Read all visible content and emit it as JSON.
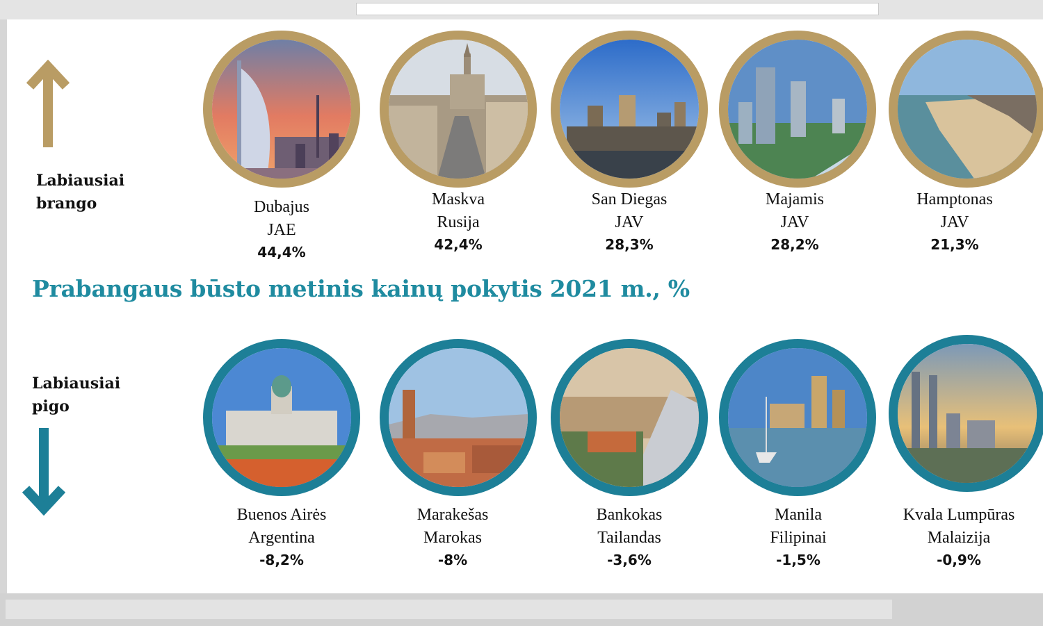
{
  "title": "Prabangaus būsto metinis kainų pokytis 2021 m., %",
  "top_label": [
    "Labiausiai",
    "brango"
  ],
  "bottom_label": [
    "Labiausiai",
    "pigo"
  ],
  "colors": {
    "gold": "#b99c64",
    "teal": "#1d7f97",
    "title": "#1f8ba0"
  },
  "top_cities": [
    {
      "city": "Dubajus",
      "country": "JAE",
      "change": "44,4%"
    },
    {
      "city": "Maskva",
      "country": "Rusija",
      "change": "42,4%"
    },
    {
      "city": "San Diegas",
      "country": "JAV",
      "change": "28,3%"
    },
    {
      "city": "Majamis",
      "country": "JAV",
      "change": "28,2%"
    },
    {
      "city": "Hamptonas",
      "country": "JAV",
      "change": "21,3%"
    }
  ],
  "bottom_cities": [
    {
      "city": "Buenos Airės",
      "country": "Argentina",
      "change": "-8,2%"
    },
    {
      "city": "Marakešas",
      "country": "Marokas",
      "change": "-8%"
    },
    {
      "city": "Bankokas",
      "country": "Tailandas",
      "change": "-3,6%"
    },
    {
      "city": "Manila",
      "country": "Filipinai",
      "change": "-1,5%"
    },
    {
      "city": "Kvala Lumpūras",
      "country": "Malaizija",
      "change": "-0,9%"
    }
  ]
}
